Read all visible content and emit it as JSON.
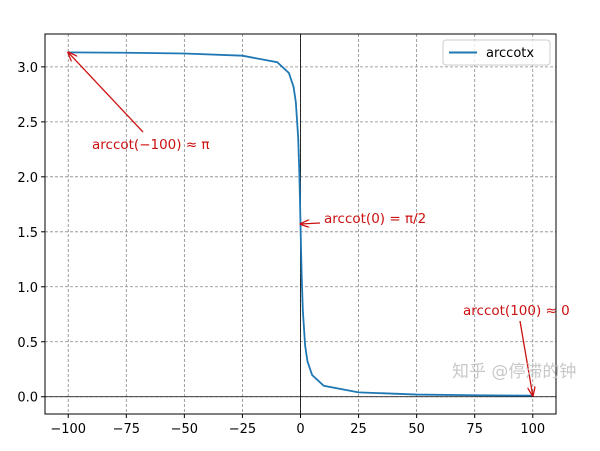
{
  "chart_data": {
    "type": "line",
    "title": "",
    "xlabel": "",
    "ylabel": "",
    "xlim": [
      -110,
      110
    ],
    "ylim": [
      -0.157,
      3.299
    ],
    "grid": true,
    "grid_style": "dashed",
    "legend_position": "top-right",
    "x_ticks": [
      -100,
      -75,
      -50,
      -25,
      0,
      25,
      50,
      75,
      100
    ],
    "x_tick_labels": [
      "−100",
      "−75",
      "−50",
      "−25",
      "0",
      "25",
      "50",
      "75",
      "100"
    ],
    "y_ticks": [
      0,
      0.5,
      1,
      1.5,
      2,
      2.5,
      3
    ],
    "y_tick_labels": [
      "0.0",
      "0.5",
      "1.0",
      "1.5",
      "2.0",
      "2.5",
      "3.0"
    ],
    "reference_lines": {
      "x": 0,
      "y": 0
    },
    "series": [
      {
        "name": "arccotx",
        "color": "#1f77b4",
        "x": [
          -100,
          -75,
          -50,
          -25,
          -10,
          -5,
          -3,
          -2,
          -1,
          -0.5,
          -0.25,
          -0.1,
          0,
          0.1,
          0.25,
          0.5,
          1,
          2,
          3,
          5,
          10,
          25,
          50,
          75,
          100
        ],
        "y": [
          3.1316,
          3.1283,
          3.1216,
          3.1016,
          3.042,
          2.9442,
          2.8198,
          2.6779,
          2.3562,
          2.0344,
          1.8158,
          1.6705,
          1.5708,
          1.4711,
          1.3258,
          1.1071,
          0.7854,
          0.4636,
          0.3218,
          0.1974,
          0.0997,
          0.04,
          0.02,
          0.0133,
          0.01
        ]
      }
    ],
    "annotations": [
      {
        "text": "arccot(−100) ≈ π",
        "point": [
          -100,
          3.1316
        ],
        "color": "#cc1111"
      },
      {
        "text": "arccot(0) = π/2",
        "point": [
          0,
          1.5708
        ],
        "color": "#cc1111"
      },
      {
        "text": "arccot(100) ≈ 0",
        "point": [
          100,
          0.01
        ],
        "color": "#cc1111"
      }
    ]
  },
  "watermark": "知乎 @停滞的钟"
}
